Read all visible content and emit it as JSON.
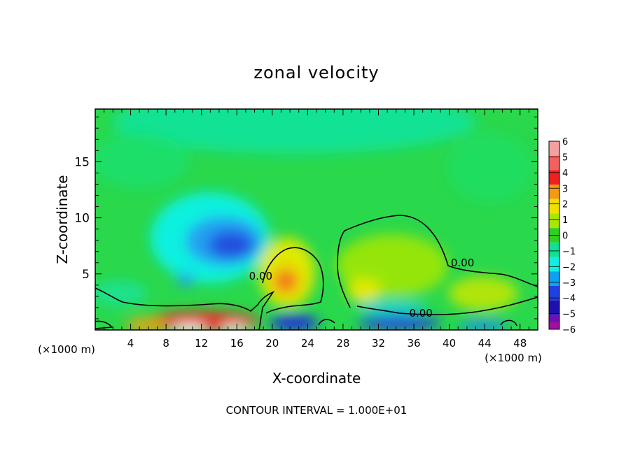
{
  "chart_data": {
    "type": "heatmap",
    "title": "zonal velocity",
    "xlabel": "X-coordinate",
    "ylabel": "Z-coordinate",
    "x_units": "(×1000 m)",
    "xlim": [
      0,
      50
    ],
    "ylim": [
      0,
      19.7
    ],
    "x_ticks": [
      4,
      8,
      12,
      16,
      20,
      24,
      28,
      32,
      36,
      40,
      44,
      48
    ],
    "y_ticks": [
      5,
      10,
      15
    ],
    "footer": "CONTOUR INTERVAL = 1.000E+01",
    "colorbar": {
      "levels": [
        {
          "label": "6",
          "color": "#f4a0a0"
        },
        {
          "label": "5",
          "color": "#f46060"
        },
        {
          "label": "4",
          "color": "#f02020"
        },
        {
          "label": "3",
          "color": "#f59a10"
        },
        {
          "label": "2",
          "color": "#f0e000"
        },
        {
          "label": "1",
          "color": "#a8e800"
        },
        {
          "label": "0",
          "color": "#30d020"
        },
        {
          "label": "−1",
          "color": "#10e090"
        },
        {
          "label": "−2",
          "color": "#10f0e0"
        },
        {
          "label": "−3",
          "color": "#10a0f0"
        },
        {
          "label": "−4",
          "color": "#2040e0"
        },
        {
          "label": "−5",
          "color": "#2010b0"
        },
        {
          "label": "−6",
          "color": "#7010b0"
        }
      ],
      "extra_color": "#a010a0"
    },
    "contour_labels": [
      {
        "text": "0.00",
        "x": 18.7,
        "z": 4.8
      },
      {
        "text": "0.00",
        "x": 41.5,
        "z": 6.0
      },
      {
        "text": "0.00",
        "x": 36.8,
        "z": 1.5
      }
    ]
  }
}
